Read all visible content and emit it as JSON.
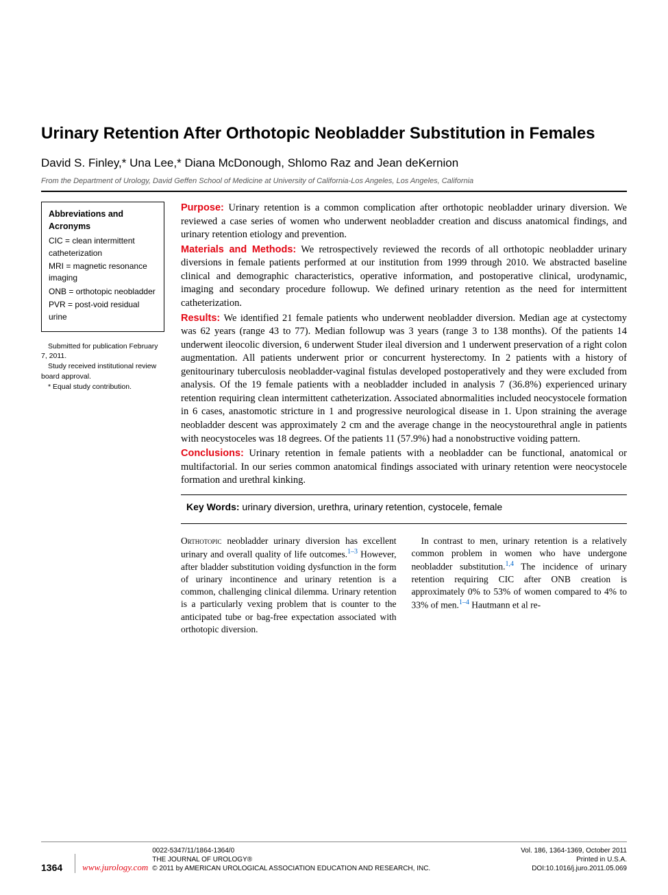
{
  "title": "Urinary Retention After Orthotopic Neobladder Substitution in Females",
  "authors": "David S. Finley,* Una Lee,* Diana McDonough, Shlomo Raz and Jean deKernion",
  "affiliation": "From the Department of Urology, David Geffen School of Medicine at University of California-Los Angeles, Los Angeles, California",
  "abbrev": {
    "heading": "Abbreviations and Acronyms",
    "items": [
      "CIC = clean intermittent catheterization",
      "MRI = magnetic resonance imaging",
      "ONB = orthotopic neobladder",
      "PVR = post-void residual urine"
    ]
  },
  "notes": {
    "n1": "Submitted for publication February 7, 2011.",
    "n2": "Study received institutional review board approval.",
    "n3": "* Equal study contribution."
  },
  "abstract": {
    "purpose_label": "Purpose:",
    "purpose": " Urinary retention is a common complication after orthotopic neobladder urinary diversion. We reviewed a case series of women who underwent neobladder creation and discuss anatomical findings, and urinary retention etiology and prevention.",
    "methods_label": "Materials and Methods:",
    "methods": " We retrospectively reviewed the records of all orthotopic neobladder urinary diversions in female patients performed at our institution from 1999 through 2010. We abstracted baseline clinical and demographic characteristics, operative information, and postoperative clinical, urodynamic, imaging and secondary procedure followup. We defined urinary retention as the need for intermittent catheterization.",
    "results_label": "Results:",
    "results": " We identified 21 female patients who underwent neobladder diversion. Median age at cystectomy was 62 years (range 43 to 77). Median followup was 3 years (range 3 to 138 months). Of the patients 14 underwent ileocolic diversion, 6 underwent Studer ileal diversion and 1 underwent preservation of a right colon augmentation. All patients underwent prior or concurrent hysterectomy. In 2 patients with a history of genitourinary tuberculosis neobladder-vaginal fistulas developed postoperatively and they were excluded from analysis. Of the 19 female patients with a neobladder included in analysis 7 (36.8%) experienced urinary retention requiring clean intermittent catheterization. Associated abnormalities included neocystocele formation in 6 cases, anastomotic stricture in 1 and progressive neurological disease in 1. Upon straining the average neobladder descent was approximately 2 cm and the average change in the neocystourethral angle in patients with neocystoceles was 18 degrees. Of the patients 11 (57.9%) had a nonobstructive voiding pattern.",
    "conclusions_label": "Conclusions:",
    "conclusions": " Urinary retention in female patients with a neobladder can be functional, anatomical or multifactorial. In our series common anatomical findings associated with urinary retention were neocystocele formation and urethral kinking."
  },
  "keywords": {
    "label": "Key Words:",
    "text": " urinary diversion, urethra, urinary retention, cystocele, female"
  },
  "body": {
    "p1a": "Orthotopic",
    "p1b": " neobladder urinary diversion has excellent urinary and overall quality of life outcomes.",
    "ref1": "1–3",
    "p1c": " However, after bladder substitution voiding dysfunction in the form of urinary incontinence and urinary retention is a common, challenging clinical dilemma. Urinary retention is a particularly vexing problem that is counter to the anticipated tube or bag-free expecta",
    "p1d": "tion associated with orthotopic diversion.",
    "p2a": "In contrast to men, urinary retention is a relatively common problem in women who have undergone neobladder substitution.",
    "ref2": "1,4",
    "p2b": " The incidence of urinary retention requiring CIC after ONB creation is approximately 0% to 53% of women compared to 4% to 33% of men.",
    "ref3": "1–4",
    "p2c": " Hautmann et al re-"
  },
  "footer": {
    "page": "1364",
    "url": "www.jurology.com",
    "c1": "0022-5347/11/1864-1364/0",
    "c2": "THE JOURNAL OF UROLOGY®",
    "c3": "© 2011 by AMERICAN UROLOGICAL ASSOCIATION EDUCATION AND RESEARCH, INC.",
    "r1": "Vol. 186, 1364-1369, October 2011",
    "r2": "Printed in U.S.A.",
    "r3": "DOI:10.1016/j.juro.2011.05.069"
  }
}
